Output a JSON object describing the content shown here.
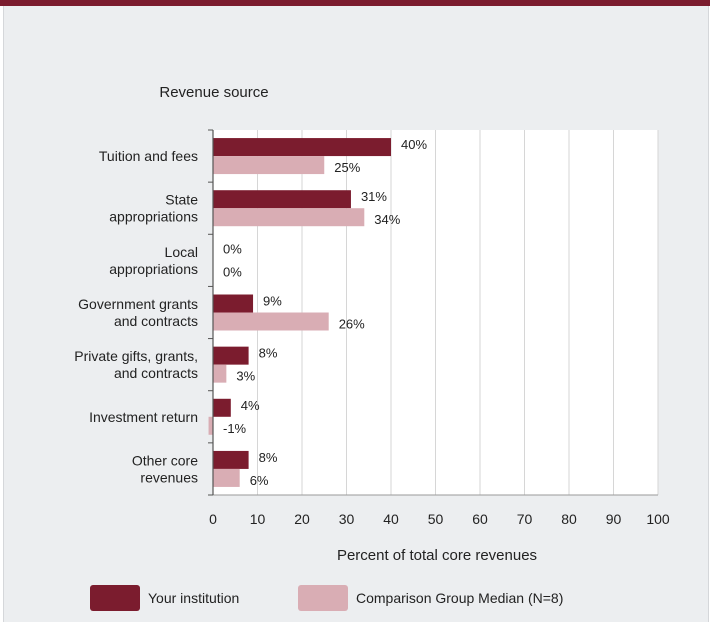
{
  "colors": {
    "institution": "#7b1c2e",
    "comparison": "#d9adb4",
    "grid": "#d6d6d6",
    "panel": "#eceef0"
  },
  "chart_data": {
    "type": "bar",
    "orientation": "horizontal",
    "title": "",
    "category_axis_title": "Revenue source",
    "xlabel": "Percent of total core revenues",
    "xlim": [
      0,
      100
    ],
    "xticks": [
      0,
      10,
      20,
      30,
      40,
      50,
      60,
      70,
      80,
      90,
      100
    ],
    "grid": true,
    "legend_position": "bottom",
    "categories": [
      [
        "Tuition and fees"
      ],
      [
        "State",
        "appropriations"
      ],
      [
        "Local",
        "appropriations"
      ],
      [
        "Government grants",
        "and contracts"
      ],
      [
        "Private gifts, grants,",
        "and contracts"
      ],
      [
        "Investment return"
      ],
      [
        "Other core",
        "revenues"
      ]
    ],
    "series": [
      {
        "name": "Your institution",
        "values": [
          40,
          31,
          0,
          9,
          8,
          4,
          8
        ],
        "labels": [
          "40%",
          "31%",
          "0%",
          "9%",
          "8%",
          "4%",
          "8%"
        ]
      },
      {
        "name": "Comparison Group Median (N=8)",
        "values": [
          25,
          34,
          0,
          26,
          3,
          -1,
          6
        ],
        "labels": [
          "25%",
          "34%",
          "0%",
          "26%",
          "3%",
          "-1%",
          "6%"
        ]
      }
    ]
  }
}
